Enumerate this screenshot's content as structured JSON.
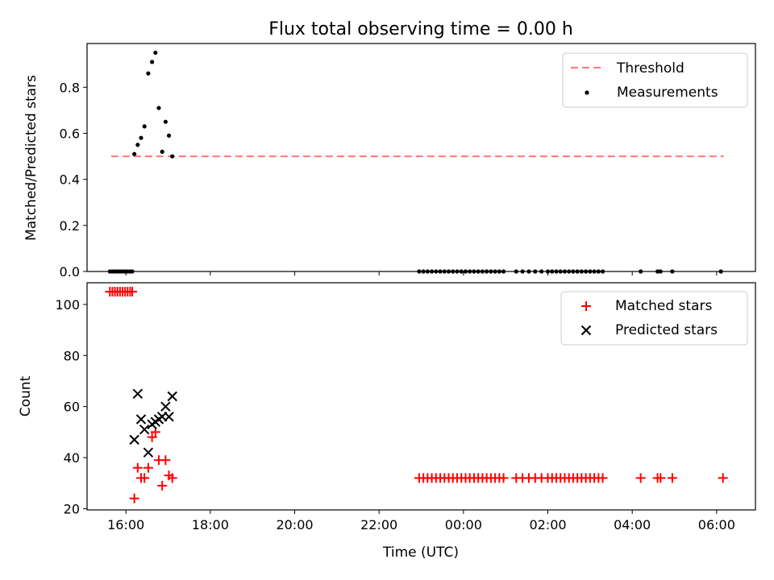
{
  "chart_data": [
    {
      "type": "line",
      "title": "Flux total observing time = 0.00 h",
      "xlabel": "",
      "ylabel": "Matched/Predicted stars",
      "ylim": [
        0,
        0.99
      ],
      "xlim": [
        15.08,
        30.92
      ],
      "yticks": [
        0.0,
        0.2,
        0.4,
        0.6,
        0.8
      ],
      "ytick_labels": [
        "0.0",
        "0.2",
        "0.4",
        "0.6",
        "0.8"
      ],
      "grid": false,
      "legend": "top-right",
      "colors": {
        "threshold": "#ff7f7f",
        "measurements": "#000000"
      },
      "series": [
        {
          "name": "Threshold",
          "style": "dashed-line",
          "x": [
            15.65,
            30.17
          ],
          "y": [
            0.5,
            0.5
          ]
        },
        {
          "name": "Measurements",
          "style": "scatter-dot",
          "x": [
            15.62,
            15.68,
            15.74,
            15.8,
            15.86,
            15.92,
            15.98,
            16.04,
            16.1,
            16.15,
            16.2,
            16.28,
            16.36,
            16.44,
            16.53,
            16.62,
            16.7,
            16.78,
            16.86,
            16.94,
            17.02,
            17.1,
            22.95,
            23.05,
            23.15,
            23.25,
            23.35,
            23.45,
            23.55,
            23.65,
            23.75,
            23.85,
            23.95,
            24.05,
            24.15,
            24.25,
            24.35,
            24.45,
            24.55,
            24.65,
            24.75,
            24.85,
            24.95,
            25.25,
            25.4,
            25.55,
            25.7,
            25.85,
            26.0,
            26.1,
            26.2,
            26.3,
            26.4,
            26.5,
            26.6,
            26.7,
            26.8,
            26.9,
            27.0,
            27.1,
            27.2,
            27.3,
            28.2,
            28.6,
            28.67,
            28.95,
            30.1
          ],
          "y": [
            0,
            0,
            0,
            0,
            0,
            0,
            0,
            0,
            0,
            0,
            0.51,
            0.55,
            0.58,
            0.63,
            0.86,
            0.91,
            0.95,
            0.71,
            0.52,
            0.65,
            0.59,
            0.5,
            0,
            0,
            0,
            0,
            0,
            0,
            0,
            0,
            0,
            0,
            0,
            0,
            0,
            0,
            0,
            0,
            0,
            0,
            0,
            0,
            0,
            0,
            0,
            0,
            0,
            0,
            0,
            0,
            0,
            0,
            0,
            0,
            0,
            0,
            0,
            0,
            0,
            0,
            0,
            0,
            0,
            0,
            0,
            0,
            0
          ]
        }
      ]
    },
    {
      "type": "scatter",
      "title": "",
      "xlabel": "Time (UTC)",
      "ylabel": "Count",
      "ylim": [
        19.5,
        108.5
      ],
      "xlim": [
        15.08,
        30.92
      ],
      "yticks": [
        20,
        40,
        60,
        80,
        100
      ],
      "ytick_labels": [
        "20",
        "40",
        "60",
        "80",
        "100"
      ],
      "xticks": [
        16,
        18,
        20,
        22,
        24,
        26,
        28,
        30
      ],
      "xtick_labels": [
        "16:00",
        "18:00",
        "20:00",
        "22:00",
        "00:00",
        "02:00",
        "04:00",
        "06:00"
      ],
      "grid": false,
      "legend": "top-right",
      "colors": {
        "matched": "#ff0000",
        "predicted": "#000000"
      },
      "series": [
        {
          "name": "Matched stars",
          "marker": "plus",
          "x": [
            15.62,
            15.68,
            15.74,
            15.8,
            15.86,
            15.92,
            15.98,
            16.04,
            16.1,
            16.15,
            16.2,
            16.28,
            16.36,
            16.44,
            16.53,
            16.62,
            16.7,
            16.78,
            16.86,
            16.94,
            17.02,
            17.1,
            22.95,
            23.05,
            23.15,
            23.25,
            23.35,
            23.45,
            23.55,
            23.65,
            23.75,
            23.85,
            23.95,
            24.05,
            24.15,
            24.25,
            24.35,
            24.45,
            24.55,
            24.65,
            24.75,
            24.85,
            24.95,
            25.25,
            25.4,
            25.55,
            25.7,
            25.85,
            26.0,
            26.1,
            26.2,
            26.3,
            26.4,
            26.5,
            26.6,
            26.7,
            26.8,
            26.9,
            27.0,
            27.1,
            27.2,
            27.3,
            28.2,
            28.6,
            28.67,
            28.95,
            30.15
          ],
          "y": [
            105,
            105,
            105,
            105,
            105,
            105,
            105,
            105,
            105,
            105,
            24,
            36,
            32,
            32,
            36,
            48,
            50,
            39,
            29,
            39,
            33,
            32,
            32,
            32,
            32,
            32,
            32,
            32,
            32,
            32,
            32,
            32,
            32,
            32,
            32,
            32,
            32,
            32,
            32,
            32,
            32,
            32,
            32,
            32,
            32,
            32,
            32,
            32,
            32,
            32,
            32,
            32,
            32,
            32,
            32,
            32,
            32,
            32,
            32,
            32,
            32,
            32,
            32,
            32,
            32,
            32,
            32
          ]
        },
        {
          "name": "Predicted stars",
          "marker": "x",
          "x": [
            16.2,
            16.28,
            16.36,
            16.44,
            16.53,
            16.62,
            16.7,
            16.78,
            16.86,
            16.94,
            17.02,
            17.1
          ],
          "y": [
            47,
            65,
            55,
            51,
            42,
            53,
            54,
            55,
            56,
            60,
            56,
            64
          ]
        }
      ]
    }
  ]
}
